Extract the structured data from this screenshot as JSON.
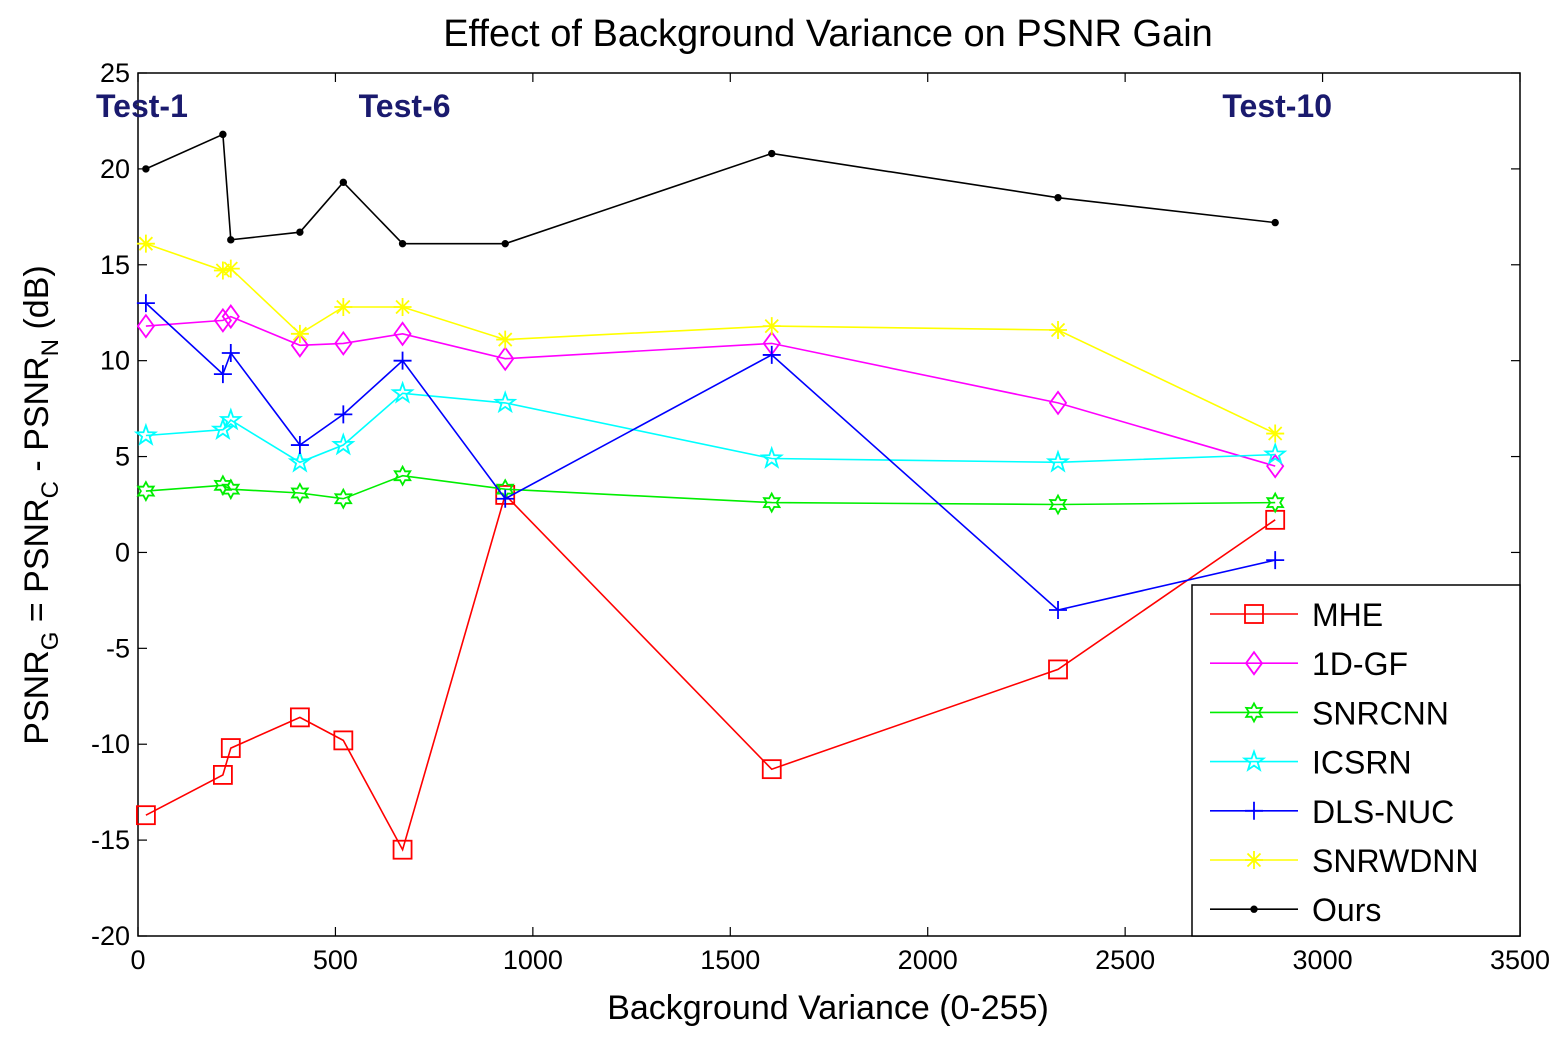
{
  "chart_data": {
    "type": "line",
    "title": "Effect of Background Variance on PSNR Gain",
    "xlabel": "Background Variance (0-255)",
    "ylabel": {
      "parts": [
        "PSNR",
        "G",
        " = PSNR",
        "C",
        " - PSNR",
        "N",
        " (dB)"
      ]
    },
    "xlim": [
      0,
      3500
    ],
    "ylim": [
      -20,
      25
    ],
    "xticks": [
      0,
      500,
      1000,
      1500,
      2000,
      2500,
      3000,
      3500
    ],
    "yticks": [
      -20,
      -15,
      -10,
      -5,
      0,
      5,
      10,
      15,
      20,
      25
    ],
    "x": [
      20,
      215,
      235,
      410,
      520,
      670,
      930,
      1605,
      2330,
      2880
    ],
    "annotations": [
      {
        "text": "Test-1",
        "x": 20,
        "y": 22.7
      },
      {
        "text": "Test-6",
        "x": 670,
        "y": 22.7
      },
      {
        "text": "Test-10",
        "x": 2880,
        "y": 22.7
      }
    ],
    "legend_position": "bottom-right",
    "series": [
      {
        "name": "MHE",
        "color": "#ff0000",
        "marker": "square",
        "values": [
          -13.7,
          -11.6,
          -10.2,
          -8.6,
          -9.8,
          -15.5,
          3.0,
          -11.3,
          -6.1,
          1.7
        ]
      },
      {
        "name": "1D-GF",
        "color": "#ff00ff",
        "marker": "diamond",
        "values": [
          11.8,
          12.1,
          12.3,
          10.8,
          10.9,
          11.4,
          10.1,
          10.9,
          7.8,
          4.5
        ]
      },
      {
        "name": "SNRCNN",
        "color": "#00ee00",
        "marker": "hexagram",
        "values": [
          3.2,
          3.5,
          3.3,
          3.1,
          2.8,
          4.0,
          3.3,
          2.6,
          2.5,
          2.6
        ]
      },
      {
        "name": "ICSRN",
        "color": "#00ffff",
        "marker": "pentagram",
        "values": [
          6.1,
          6.4,
          6.9,
          4.7,
          5.6,
          8.3,
          7.8,
          4.9,
          4.7,
          5.1
        ]
      },
      {
        "name": "DLS-NUC",
        "color": "#0000ff",
        "marker": "plus",
        "values": [
          13.0,
          9.3,
          10.4,
          5.6,
          7.2,
          10.0,
          2.8,
          10.3,
          -3.0,
          -0.4
        ]
      },
      {
        "name": "SNRWDNN",
        "color": "#ffff00",
        "marker": "asterisk",
        "values": [
          16.1,
          14.7,
          14.8,
          11.4,
          12.8,
          12.8,
          11.1,
          11.8,
          11.6,
          6.2
        ]
      },
      {
        "name": "Ours",
        "color": "#000000",
        "marker": "dot",
        "values": [
          20.0,
          21.8,
          16.3,
          16.7,
          19.3,
          16.1,
          16.1,
          20.8,
          18.5,
          17.2
        ]
      }
    ]
  }
}
